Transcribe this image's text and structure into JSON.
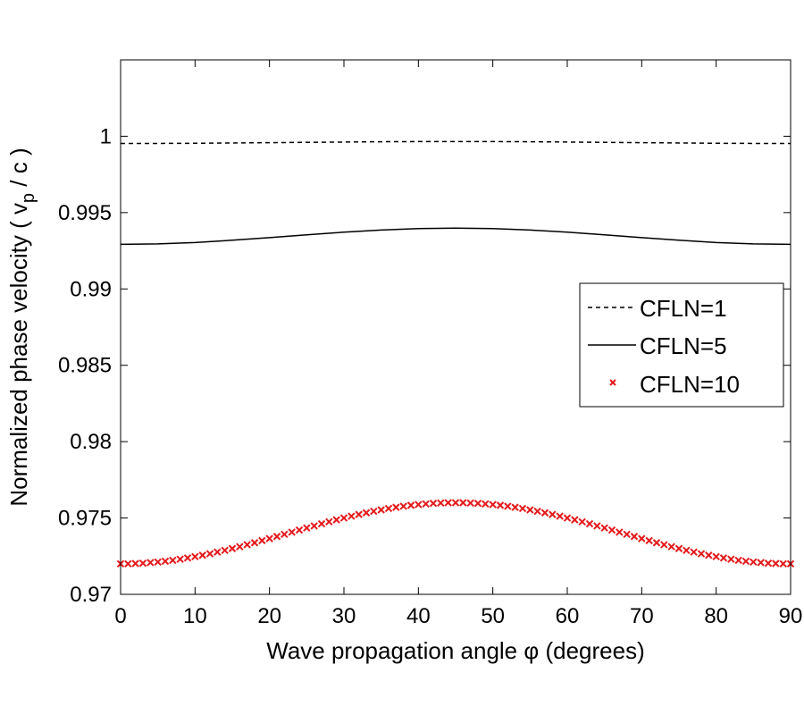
{
  "chart_data": {
    "type": "line",
    "title": "",
    "xlabel": "Wave propagation angle φ (degrees)",
    "ylabel": {
      "main": "Normalized phase velocity  ( v",
      "sub": "p",
      "tail": " / c )"
    },
    "xlim": [
      0,
      90
    ],
    "ylim": [
      0.97,
      1.005
    ],
    "xticks": [
      0,
      10,
      20,
      30,
      40,
      50,
      60,
      70,
      80,
      90
    ],
    "yticks": [
      0.97,
      0.975,
      0.98,
      0.985,
      0.99,
      0.995,
      1
    ],
    "ytick_labels": [
      "0.97",
      "0.975",
      "0.98",
      "0.985",
      "0.99",
      "0.995",
      "1"
    ],
    "grid": false,
    "legend_position": "right",
    "series": [
      {
        "name": "CFLN=1",
        "style": "dashed",
        "color": "#000000",
        "x": [
          0,
          5,
          10,
          15,
          20,
          25,
          30,
          35,
          40,
          45,
          50,
          55,
          60,
          65,
          70,
          75,
          80,
          85,
          90
        ],
        "y": [
          0.99953,
          0.99953,
          0.99954,
          0.99956,
          0.99958,
          0.9996,
          0.99962,
          0.99964,
          0.99965,
          0.99965,
          0.99965,
          0.99964,
          0.99962,
          0.9996,
          0.99958,
          0.99956,
          0.99954,
          0.99953,
          0.99953
        ]
      },
      {
        "name": "CFLN=5",
        "style": "solid",
        "color": "#000000",
        "x": [
          0,
          5,
          10,
          15,
          20,
          25,
          30,
          35,
          40,
          45,
          50,
          55,
          60,
          65,
          70,
          75,
          80,
          85,
          90
        ],
        "y": [
          0.99292,
          0.99295,
          0.99304,
          0.99319,
          0.99336,
          0.99354,
          0.99372,
          0.99386,
          0.99395,
          0.99398,
          0.99395,
          0.99386,
          0.99372,
          0.99354,
          0.99336,
          0.99319,
          0.99304,
          0.99295,
          0.99292
        ]
      },
      {
        "name": "CFLN=10",
        "style": "x-marker",
        "color": "#e41a1c",
        "x_start": 0,
        "x_step": 1,
        "y": [
          0.972,
          0.972,
          0.97202,
          0.97204,
          0.97208,
          0.97212,
          0.97217,
          0.97223,
          0.9723,
          0.97238,
          0.97247,
          0.97256,
          0.97266,
          0.97277,
          0.97288,
          0.973,
          0.97312,
          0.97325,
          0.97338,
          0.97352,
          0.97365,
          0.97379,
          0.97393,
          0.97407,
          0.97421,
          0.97435,
          0.97448,
          0.97462,
          0.97475,
          0.97488,
          0.975,
          0.97512,
          0.97523,
          0.97534,
          0.97544,
          0.97553,
          0.97562,
          0.9757,
          0.97577,
          0.97583,
          0.97588,
          0.97592,
          0.97596,
          0.97598,
          0.976,
          0.976,
          0.976,
          0.97598,
          0.97596,
          0.97592,
          0.97588,
          0.97583,
          0.97577,
          0.9757,
          0.97562,
          0.97553,
          0.97544,
          0.97534,
          0.97523,
          0.97512,
          0.975,
          0.97488,
          0.97475,
          0.97462,
          0.97448,
          0.97435,
          0.97421,
          0.97407,
          0.97393,
          0.97379,
          0.97365,
          0.97352,
          0.97338,
          0.97325,
          0.97312,
          0.973,
          0.97288,
          0.97277,
          0.97266,
          0.97256,
          0.97247,
          0.97238,
          0.9723,
          0.97223,
          0.97217,
          0.97212,
          0.97208,
          0.97204,
          0.97202,
          0.972,
          0.972
        ]
      }
    ]
  }
}
